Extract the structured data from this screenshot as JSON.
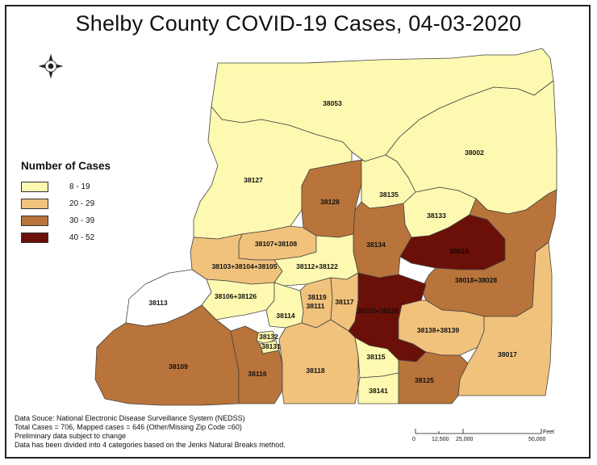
{
  "title": "Shelby County COVID-19 Cases, 04-03-2020",
  "legend": {
    "title": "Number of Cases",
    "items": [
      {
        "label": "8 - 19",
        "color": "#fdf9b0"
      },
      {
        "label": "20 - 29",
        "color": "#f0c27c"
      },
      {
        "label": "30 - 39",
        "color": "#b8743a"
      },
      {
        "label": "40 - 52",
        "color": "#6a1008"
      }
    ]
  },
  "regions": {
    "z38053": {
      "label": "38053",
      "class": "8 - 19"
    },
    "z38002": {
      "label": "38002",
      "class": "8 - 19"
    },
    "z38127": {
      "label": "38127",
      "class": "8 - 19"
    },
    "z38128": {
      "label": "38128",
      "class": "30 - 39"
    },
    "z38135": {
      "label": "38135",
      "class": "8 - 19"
    },
    "z38133": {
      "label": "38133",
      "class": "8 - 19"
    },
    "z38134": {
      "label": "38134",
      "class": "30 - 39"
    },
    "z38016": {
      "label": "38016",
      "class": "40 - 52"
    },
    "z38018": {
      "label": "38018+38028",
      "class": "30 - 39"
    },
    "z38107": {
      "label": "38107+38108",
      "class": "20 - 29"
    },
    "z38103": {
      "label": "38103+38104+38105",
      "class": "20 - 29"
    },
    "z38112": {
      "label": "38112+38122",
      "class": "8 - 19"
    },
    "z38113": {
      "label": "38113",
      "class": ""
    },
    "z38106": {
      "label": "38106+38126",
      "class": "8 - 19"
    },
    "z38114": {
      "label": "38114",
      "class": "8 - 19"
    },
    "z38111": {
      "label": "38111",
      "class": "20 - 29"
    },
    "z38117": {
      "label": "38117",
      "class": "20 - 29"
    },
    "z38119": {
      "label": "38119",
      "class": "20 - 29"
    },
    "z38115_38120": {
      "label": "38115+38120",
      "class": "40 - 52"
    },
    "z38138": {
      "label": "38138+38139",
      "class": "20 - 29"
    },
    "z38017": {
      "label": "38017",
      "class": "20 - 29"
    },
    "z38109": {
      "label": "38109",
      "class": "30 - 39"
    },
    "z38132": {
      "label": "38132",
      "class": "8 - 19"
    },
    "z38131": {
      "label": "38131",
      "class": "8 - 19"
    },
    "z38116": {
      "label": "38116",
      "class": "30 - 39"
    },
    "z38118": {
      "label": "38118",
      "class": "20 - 29"
    },
    "z38115": {
      "label": "38115",
      "class": "8 - 19"
    },
    "z38141": {
      "label": "38141",
      "class": "8 - 19"
    },
    "z38125": {
      "label": "38125",
      "class": "30 - 39"
    }
  },
  "footer": {
    "line1": "Data Souce: National Electronic Disease Surveillance System (NEDSS)",
    "line2": "Total Cases = 706, Mapped cases = 646 (Other/Missing Zip Code =60)",
    "line3": "Preliminary data subject to change",
    "line4": "Data has been divided into 4 categories based on the Jenks Natural Breaks method."
  },
  "scalebar": {
    "unit": "Feet",
    "ticks": [
      "0",
      "12,500",
      "25,000",
      "50,000"
    ]
  },
  "compass": {
    "icon": "north-arrow-icon"
  }
}
